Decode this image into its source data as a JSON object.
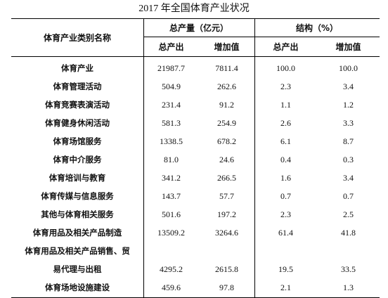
{
  "title": "2017 年全国体育产业状况",
  "header": {
    "category": "体育产业类别名称",
    "total_group": "总产量（亿元）",
    "structure_group": "结构（%）",
    "output": "总产出",
    "added_value": "增加值",
    "output_pct": "总产出",
    "added_value_pct": "增加值"
  },
  "rows": [
    {
      "name": "体育产业",
      "output": "21987.7",
      "added_value": "7811.4",
      "output_pct": "100.0",
      "added_value_pct": "100.0"
    },
    {
      "name": "体育管理活动",
      "output": "504.9",
      "added_value": "262.6",
      "output_pct": "2.3",
      "added_value_pct": "3.4"
    },
    {
      "name": "体育竞赛表演活动",
      "output": "231.4",
      "added_value": "91.2",
      "output_pct": "1.1",
      "added_value_pct": "1.2"
    },
    {
      "name": "体育健身休闲活动",
      "output": "581.3",
      "added_value": "254.9",
      "output_pct": "2.6",
      "added_value_pct": "3.3"
    },
    {
      "name": "体育场馆服务",
      "output": "1338.5",
      "added_value": "678.2",
      "output_pct": "6.1",
      "added_value_pct": "8.7"
    },
    {
      "name": "体育中介服务",
      "output": "81.0",
      "added_value": "24.6",
      "output_pct": "0.4",
      "added_value_pct": "0.3"
    },
    {
      "name": "体育培训与教育",
      "output": "341.2",
      "added_value": "266.5",
      "output_pct": "1.6",
      "added_value_pct": "3.4"
    },
    {
      "name": "体育传媒与信息服务",
      "output": "143.7",
      "added_value": "57.7",
      "output_pct": "0.7",
      "added_value_pct": "0.7"
    },
    {
      "name": "其他与体育相关服务",
      "output": "501.6",
      "added_value": "197.2",
      "output_pct": "2.3",
      "added_value_pct": "2.5"
    },
    {
      "name": "体育用品及相关产品制造",
      "output": "13509.2",
      "added_value": "3264.6",
      "output_pct": "61.4",
      "added_value_pct": "41.8"
    },
    {
      "name_line1": "体育用品及相关产品销售、贸",
      "name": "易代理与出租",
      "output": "4295.2",
      "added_value": "2615.8",
      "output_pct": "19.5",
      "added_value_pct": "33.5"
    },
    {
      "name": "体育场地设施建设",
      "output": "459.6",
      "added_value": "97.8",
      "output_pct": "2.1",
      "added_value_pct": "1.3"
    }
  ]
}
